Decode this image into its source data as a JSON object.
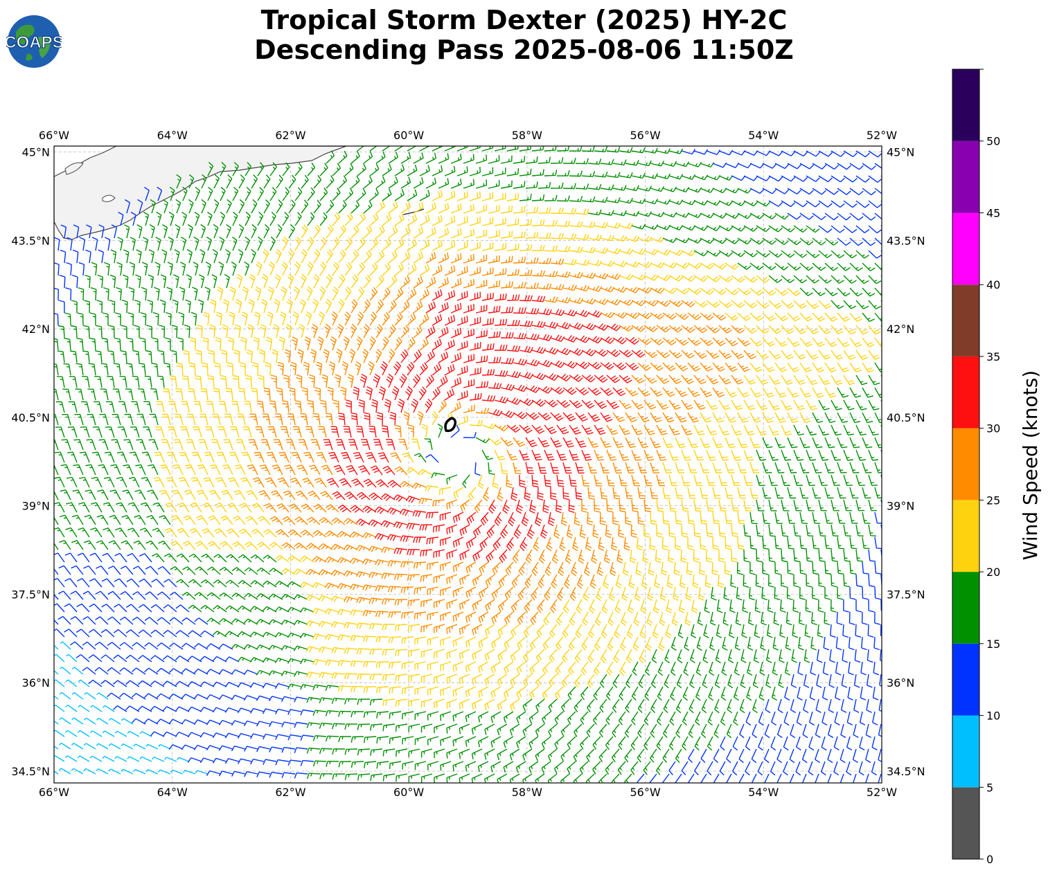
{
  "title": {
    "line1": "Tropical Storm Dexter (2025) HY-2C",
    "line2": "Descending Pass 2025-08-06 11:50Z"
  },
  "logo": {
    "text": "COAPS",
    "icon": "earth-globe-icon"
  },
  "map": {
    "lon_range": [
      -66,
      -52
    ],
    "lat_range": [
      34.3,
      45.1
    ],
    "lon_ticks": [
      {
        "value": -66,
        "label": "66°W"
      },
      {
        "value": -64,
        "label": "64°W"
      },
      {
        "value": -62,
        "label": "62°W"
      },
      {
        "value": -60,
        "label": "60°W"
      },
      {
        "value": -58,
        "label": "58°W"
      },
      {
        "value": -56,
        "label": "56°W"
      },
      {
        "value": -54,
        "label": "54°W"
      },
      {
        "value": -52,
        "label": "52°W"
      }
    ],
    "lat_ticks": [
      {
        "value": 45,
        "label": "45°N"
      },
      {
        "value": 43.5,
        "label": "43.5°N"
      },
      {
        "value": 42,
        "label": "42°N"
      },
      {
        "value": 40.5,
        "label": "40.5°N"
      },
      {
        "value": 39,
        "label": "39°N"
      },
      {
        "value": 37.5,
        "label": "37.5°N"
      },
      {
        "value": 36,
        "label": "36°N"
      },
      {
        "value": 34.5,
        "label": "34.5°N"
      }
    ],
    "grid": true,
    "storm_center": {
      "lon": -59.3,
      "lat": 40.35
    }
  },
  "colorbar": {
    "label": "Wind Speed (knots)",
    "tick_labels": [
      "0",
      "5",
      "10",
      "15",
      "20",
      "25",
      "30",
      "35",
      "40",
      "45",
      "50"
    ],
    "bins": [
      {
        "min": 0,
        "max": 5,
        "color": "#555555"
      },
      {
        "min": 5,
        "max": 10,
        "color": "#00bfff"
      },
      {
        "min": 10,
        "max": 15,
        "color": "#0033ff"
      },
      {
        "min": 15,
        "max": 20,
        "color": "#009000"
      },
      {
        "min": 20,
        "max": 25,
        "color": "#ffd210"
      },
      {
        "min": 25,
        "max": 30,
        "color": "#ff8c00"
      },
      {
        "min": 30,
        "max": 35,
        "color": "#ff1010"
      },
      {
        "min": 35,
        "max": 40,
        "color": "#803c28"
      },
      {
        "min": 40,
        "max": 45,
        "color": "#ff00ff"
      },
      {
        "min": 45,
        "max": 50,
        "color": "#8800b0"
      },
      {
        "min": 50,
        "max": 55,
        "color": "#2a005c"
      }
    ]
  }
}
